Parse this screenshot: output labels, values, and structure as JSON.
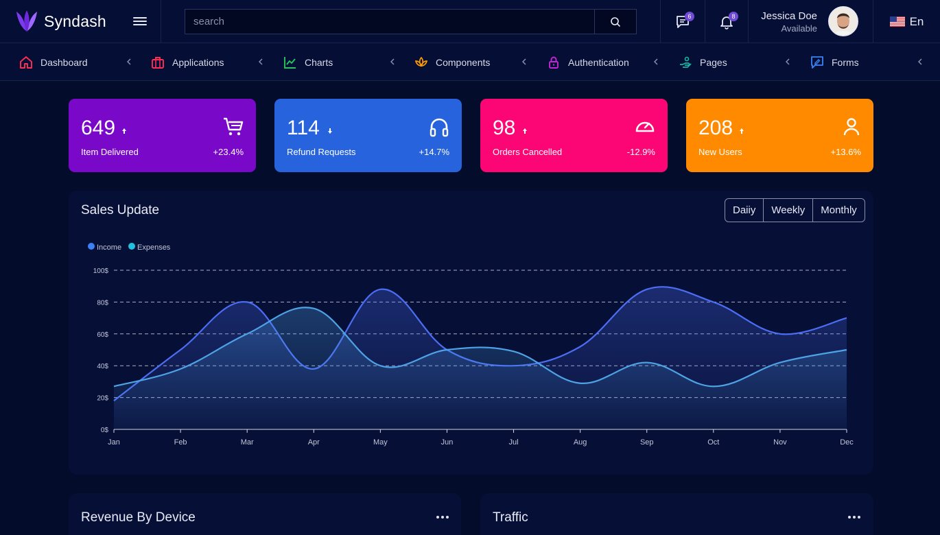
{
  "header": {
    "brand": "Syndash",
    "search_placeholder": "search",
    "messages_count": "6",
    "notifications_count": "8",
    "user_name": "Jessica Doe",
    "user_status": "Available",
    "language": "En"
  },
  "nav": {
    "items": [
      {
        "label": "Dashboard",
        "icon": "home-icon",
        "color": "#ff2d55"
      },
      {
        "label": "Applications",
        "icon": "briefcase-icon",
        "color": "#ff2d55"
      },
      {
        "label": "Charts",
        "icon": "line-chart-icon",
        "color": "#22c55e"
      },
      {
        "label": "Components",
        "icon": "lotus-icon",
        "color": "#ff9900"
      },
      {
        "label": "Authentication",
        "icon": "lock-icon",
        "color": "#c026d3"
      },
      {
        "label": "Pages",
        "icon": "hand-icon",
        "color": "#14b8a6"
      },
      {
        "label": "Forms",
        "icon": "message-edit-icon",
        "color": "#3b82f6"
      }
    ]
  },
  "stats": [
    {
      "value": "649",
      "trend": "up",
      "label": "Item Delivered",
      "change": "+23.4%",
      "color": "#7a08c9",
      "icon": "cart-icon"
    },
    {
      "value": "114",
      "trend": "down",
      "label": "Refund Requests",
      "change": "+14.7%",
      "color": "#2763dc",
      "icon": "headphones-icon"
    },
    {
      "value": "98",
      "trend": "up",
      "label": "Orders Cancelled",
      "change": "-12.9%",
      "color": "#fb0674",
      "icon": "speedometer-icon"
    },
    {
      "value": "208",
      "trend": "up",
      "label": "New Users",
      "change": "+13.6%",
      "color": "#ff8a00",
      "icon": "user-icon"
    }
  ],
  "sales": {
    "title": "Sales Update",
    "tabs": [
      "Daiiy",
      "Weekly",
      "Monthly"
    ]
  },
  "chart_data": {
    "type": "area",
    "categories": [
      "Jan",
      "Feb",
      "Mar",
      "Apr",
      "May",
      "Jun",
      "Jul",
      "Aug",
      "Sep",
      "Oct",
      "Nov",
      "Dec"
    ],
    "series": [
      {
        "name": "Income",
        "color": "#4c6ef5",
        "values": [
          18,
          50,
          80,
          38,
          88,
          50,
          40,
          52,
          88,
          80,
          60,
          70
        ]
      },
      {
        "name": "Expenses",
        "color": "#4ea3e6",
        "values": [
          27,
          38,
          60,
          76,
          40,
          50,
          49,
          29,
          42,
          27,
          42,
          50
        ]
      }
    ],
    "yticks": [
      "0$",
      "20$",
      "40$",
      "60$",
      "80$",
      "100$"
    ],
    "ylim": [
      0,
      100
    ],
    "grid": true,
    "legend": "top-left"
  },
  "revenue": {
    "title": "Revenue By Device"
  },
  "traffic": {
    "title": "Traffic"
  }
}
